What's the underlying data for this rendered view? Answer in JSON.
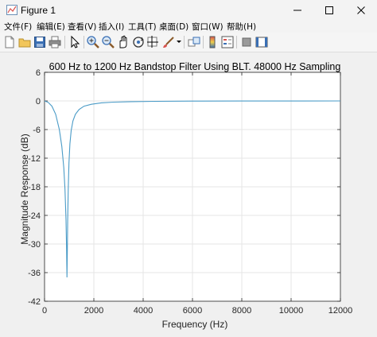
{
  "window": {
    "title": "Figure 1",
    "icons": [
      "figure-app-icon",
      "minimize-icon",
      "maximize-icon",
      "close-icon"
    ]
  },
  "menu": {
    "items": [
      "文件(F)",
      "编辑(E)",
      "查看(V)",
      "插入(I)",
      "工具(T)",
      "桌面(D)",
      "窗口(W)",
      "帮助(H)"
    ]
  },
  "toolbar": {
    "icons": [
      "new-figure-icon",
      "open-file-icon",
      "save-icon",
      "print-icon",
      "pointer-icon",
      "zoom-in-icon",
      "zoom-out-icon",
      "pan-icon",
      "rotate-3d-icon",
      "data-cursor-icon",
      "brush-icon",
      "link-plot-icon",
      "colorbar-icon",
      "legend-icon",
      "hide-plot-tools-icon",
      "show-plot-tools-icon"
    ]
  },
  "chart_data": {
    "type": "line",
    "title": "600 Hz to 1200 Hz Bandstop Filter Using BLT. 48000 Hz Sampling",
    "xlabel": "Frequency (Hz)",
    "ylabel": "Magnitude Response (dB)",
    "xlim": [
      0,
      12000
    ],
    "ylim": [
      -42,
      6
    ],
    "xticks": [
      0,
      2000,
      4000,
      6000,
      8000,
      10000,
      12000
    ],
    "yticks": [
      6,
      0,
      -6,
      -12,
      -18,
      -24,
      -30,
      -36,
      -42
    ],
    "grid": true,
    "color": "#4a9bc7",
    "series": [
      {
        "x": [
          0,
          150,
          300,
          450,
          600,
          700,
          780,
          830,
          870,
          895,
          910,
          925,
          940,
          960,
          990,
          1030,
          1080,
          1150,
          1250,
          1400,
          1600,
          1900,
          2300,
          2800,
          3500,
          4500,
          6000,
          8000,
          10000,
          12000
        ],
        "y": [
          0,
          -0.3,
          -1.1,
          -2.8,
          -6,
          -9.5,
          -14,
          -18.5,
          -25,
          -31,
          -37,
          -31,
          -25,
          -18.5,
          -13,
          -9,
          -6.2,
          -4.2,
          -2.8,
          -1.8,
          -1.1,
          -0.7,
          -0.4,
          -0.25,
          -0.15,
          -0.08,
          -0.04,
          -0.02,
          -0.01,
          0
        ]
      }
    ]
  }
}
